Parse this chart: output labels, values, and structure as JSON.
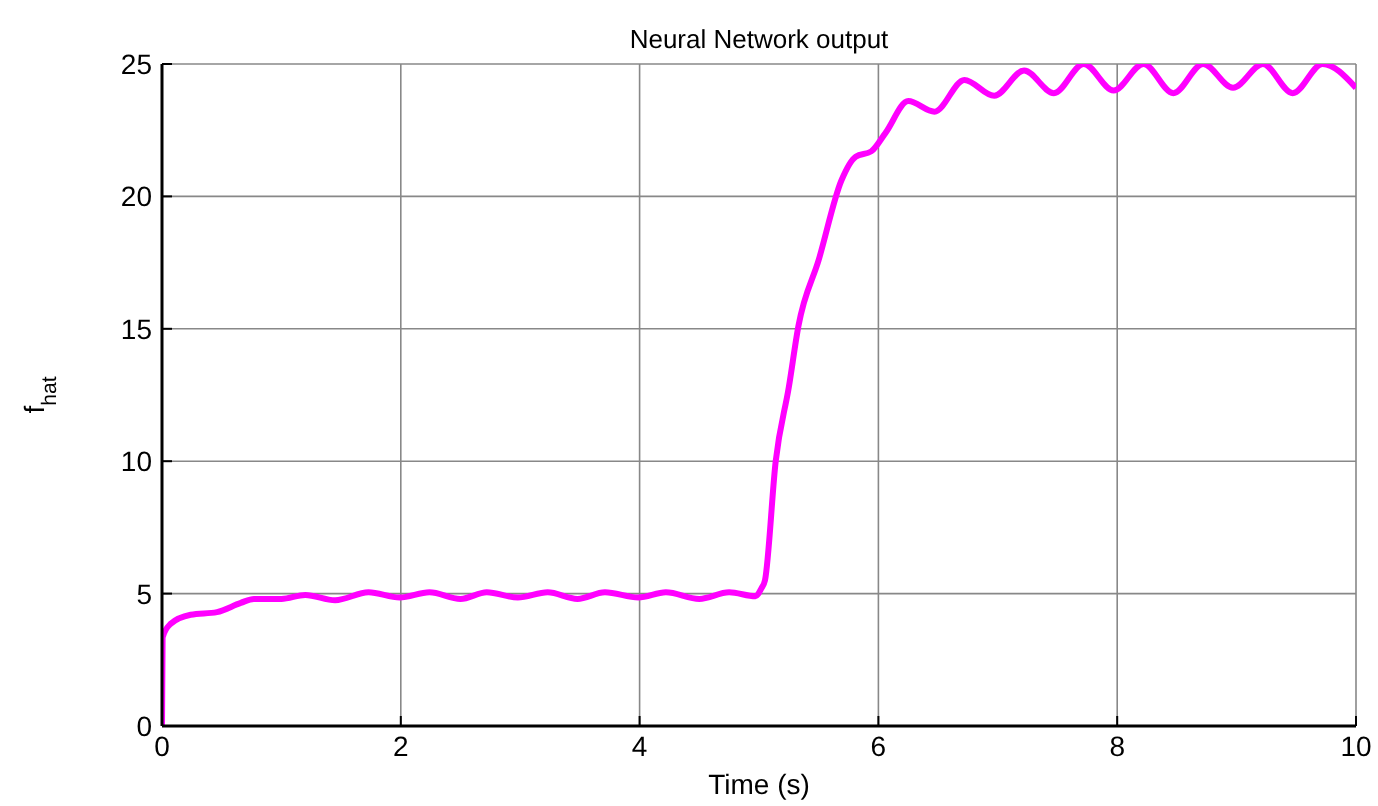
{
  "chart_data": {
    "type": "line",
    "title": "Neural Network output",
    "xlabel": "Time (s)",
    "ylabel": "f$_{hat}$",
    "xlim": [
      0,
      10
    ],
    "xticks": [
      0,
      2,
      4,
      6,
      8,
      10
    ],
    "ylim": [
      0,
      25
    ],
    "yticks": [
      0,
      5,
      10,
      15,
      20,
      25
    ],
    "grid": true,
    "marker": "none",
    "line_style": "solid",
    "series": [
      {
        "color": "#ff00ff",
        "x": [
          0,
          0.005,
          0.07,
          0.24,
          0.46,
          0.66,
          0.77,
          1.0,
          1.2,
          1.45,
          1.73,
          1.99,
          2.24,
          2.5,
          2.72,
          2.98,
          3.23,
          3.48,
          3.71,
          3.99,
          4.22,
          4.5,
          4.75,
          4.97,
          5.02,
          5.05,
          5.14,
          5.25,
          5.33,
          5.5,
          5.69,
          5.81,
          5.94,
          6.06,
          6.25,
          6.47,
          6.72,
          6.97,
          7.22,
          7.47,
          7.72,
          7.97,
          8.22,
          8.47,
          8.72,
          8.97,
          9.22,
          9.47,
          9.72,
          10.0
        ],
        "values": [
          0,
          3.35,
          3.85,
          4.2,
          4.3,
          4.65,
          4.8,
          4.8,
          4.95,
          4.75,
          5.05,
          4.85,
          5.05,
          4.8,
          5.05,
          4.85,
          5.05,
          4.8,
          5.05,
          4.85,
          5.05,
          4.8,
          5.05,
          4.9,
          5.2,
          5.5,
          10.0,
          12.8,
          15.1,
          17.6,
          20.6,
          21.5,
          21.7,
          22.4,
          23.6,
          23.2,
          24.4,
          23.8,
          24.75,
          23.9,
          25,
          24,
          25,
          23.9,
          25,
          24.1,
          25,
          23.9,
          25,
          24.1
        ]
      }
    ]
  }
}
